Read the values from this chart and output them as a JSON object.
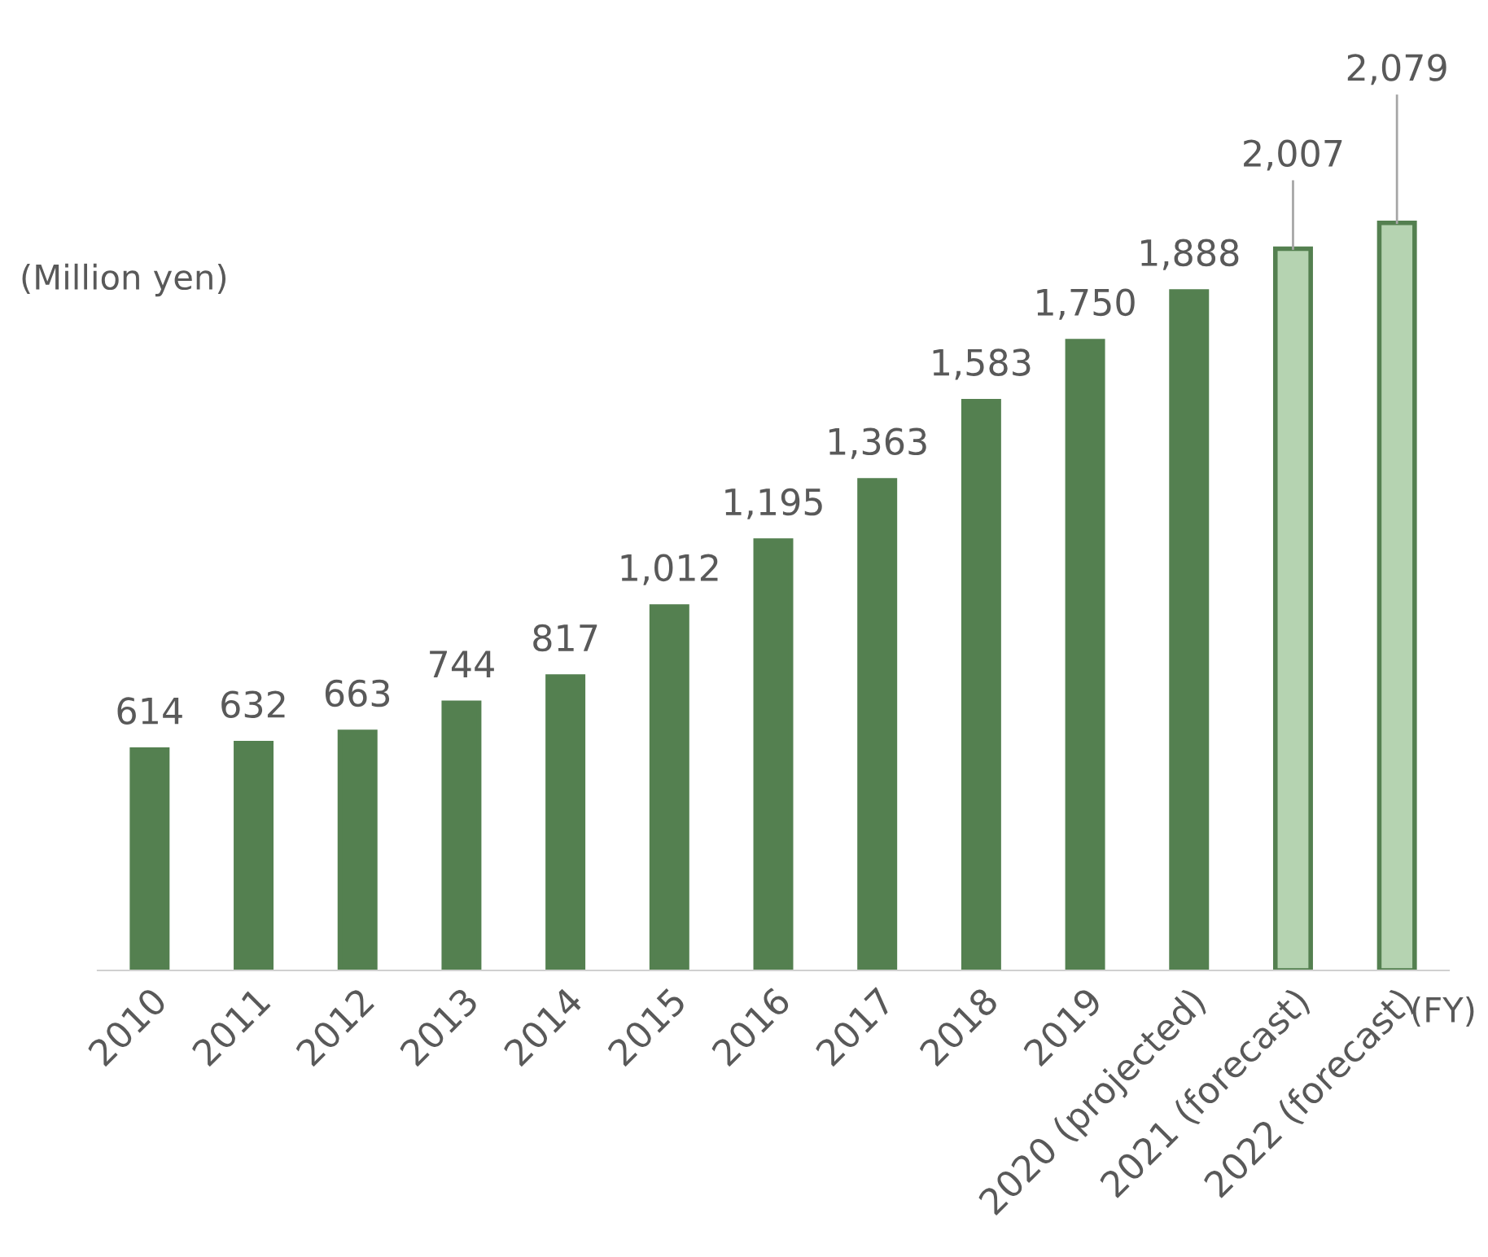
{
  "chart_data": {
    "type": "bar",
    "categories": [
      "2010",
      "2011",
      "2012",
      "2013",
      "2014",
      "2015",
      "2016",
      "2017",
      "2018",
      "2019",
      "2020 (projected)",
      "2021 (forecast)",
      "2022 (forecast)"
    ],
    "values": [
      614,
      632,
      663,
      744,
      817,
      1012,
      1195,
      1363,
      1583,
      1750,
      1888,
      2007,
      2079
    ],
    "colors": [
      "#548050",
      "#548050",
      "#548050",
      "#548050",
      "#548050",
      "#548050",
      "#548050",
      "#548050",
      "#548050",
      "#548050",
      "#548050",
      "#b5d3b1",
      "#b5d3b1"
    ],
    "value_labels": [
      "614",
      "632",
      "663",
      "744",
      "817",
      "1,012",
      "1,195",
      "1,363",
      "1,583",
      "1,750",
      "1,888",
      "2,007",
      "2,079"
    ],
    "relative": false,
    "annotations": [
      "(Million yen)",
      "(FY)"
    ],
    "grid": false,
    "legend": false
  }
}
